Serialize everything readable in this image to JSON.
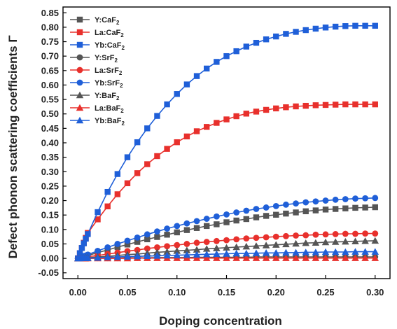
{
  "chart_data": {
    "type": "line",
    "xlabel": "Doping concentration",
    "ylabel": "Defect phonon scattering coefficients Γ",
    "xlim": [
      -0.015,
      0.315
    ],
    "ylim": [
      -0.07,
      0.87
    ],
    "xticks": [
      0.0,
      0.05,
      0.1,
      0.15,
      0.2,
      0.25,
      0.3
    ],
    "xtick_labels": [
      "0.00",
      "0.05",
      "0.10",
      "0.15",
      "0.20",
      "0.25",
      "0.30"
    ],
    "yticks": [
      -0.05,
      0.0,
      0.05,
      0.1,
      0.15,
      0.2,
      0.25,
      0.3,
      0.35,
      0.4,
      0.45,
      0.5,
      0.55,
      0.6,
      0.65,
      0.7,
      0.75,
      0.8,
      0.85
    ],
    "ytick_labels": [
      "-0.05",
      "0.00",
      "0.05",
      "0.10",
      "0.15",
      "0.20",
      "0.25",
      "0.30",
      "0.35",
      "0.40",
      "0.45",
      "0.50",
      "0.55",
      "0.60",
      "0.65",
      "0.70",
      "0.75",
      "0.80",
      "0.85"
    ],
    "legend_position": "top-left",
    "x": [
      0.0,
      0.002,
      0.004,
      0.006,
      0.008,
      0.01,
      0.02,
      0.03,
      0.04,
      0.05,
      0.06,
      0.07,
      0.08,
      0.09,
      0.1,
      0.11,
      0.12,
      0.13,
      0.14,
      0.15,
      0.16,
      0.17,
      0.18,
      0.19,
      0.2,
      0.21,
      0.22,
      0.23,
      0.24,
      0.25,
      0.26,
      0.27,
      0.28,
      0.29,
      0.3
    ],
    "series": [
      {
        "name": "Y:CaF",
        "sub": "2",
        "color": "#555555",
        "marker": "square",
        "values": [
          0.0,
          0.002,
          0.004,
          0.006,
          0.008,
          0.01,
          0.02,
          0.029,
          0.039,
          0.048,
          0.057,
          0.066,
          0.074,
          0.082,
          0.09,
          0.098,
          0.105,
          0.112,
          0.118,
          0.125,
          0.131,
          0.136,
          0.142,
          0.147,
          0.151,
          0.155,
          0.159,
          0.163,
          0.166,
          0.169,
          0.171,
          0.173,
          0.175,
          0.176,
          0.177
        ]
      },
      {
        "name": "La:CaF",
        "sub": "2",
        "color": "#e8302c",
        "marker": "square",
        "values": [
          0.0,
          0.018,
          0.036,
          0.054,
          0.071,
          0.088,
          0.135,
          0.18,
          0.222,
          0.26,
          0.295,
          0.326,
          0.354,
          0.379,
          0.402,
          0.422,
          0.44,
          0.455,
          0.469,
          0.481,
          0.492,
          0.501,
          0.508,
          0.514,
          0.519,
          0.523,
          0.526,
          0.528,
          0.53,
          0.531,
          0.532,
          0.533,
          0.533,
          0.533,
          0.533
        ]
      },
      {
        "name": "Yb:CaF",
        "sub": "2",
        "color": "#1f5fd8",
        "marker": "square",
        "values": [
          0.0,
          0.018,
          0.036,
          0.052,
          0.068,
          0.084,
          0.16,
          0.23,
          0.292,
          0.35,
          0.402,
          0.45,
          0.493,
          0.533,
          0.569,
          0.602,
          0.631,
          0.657,
          0.68,
          0.7,
          0.717,
          0.733,
          0.746,
          0.758,
          0.768,
          0.777,
          0.784,
          0.79,
          0.795,
          0.799,
          0.802,
          0.804,
          0.805,
          0.805,
          0.805
        ]
      },
      {
        "name": "Y:SrF",
        "sub": "2",
        "color": "#555555",
        "marker": "circle",
        "values": [
          0.0,
          0.0,
          0.0,
          0.0,
          0.0,
          0.0,
          0.001,
          0.001,
          0.001,
          0.002,
          0.002,
          0.002,
          0.003,
          0.003,
          0.003,
          0.003,
          0.004,
          0.004,
          0.004,
          0.004,
          0.004,
          0.004,
          0.005,
          0.005,
          0.005,
          0.005,
          0.005,
          0.005,
          0.005,
          0.005,
          0.005,
          0.005,
          0.005,
          0.005,
          0.005
        ]
      },
      {
        "name": "La:SrF",
        "sub": "2",
        "color": "#e8302c",
        "marker": "circle",
        "values": [
          0.0,
          0.001,
          0.002,
          0.003,
          0.004,
          0.006,
          0.01,
          0.015,
          0.02,
          0.025,
          0.029,
          0.034,
          0.038,
          0.042,
          0.046,
          0.05,
          0.054,
          0.057,
          0.06,
          0.063,
          0.066,
          0.069,
          0.071,
          0.073,
          0.075,
          0.077,
          0.079,
          0.08,
          0.082,
          0.083,
          0.084,
          0.085,
          0.085,
          0.086,
          0.086
        ]
      },
      {
        "name": "Yb:SrF",
        "sub": "2",
        "color": "#1f5fd8",
        "marker": "circle",
        "values": [
          0.0,
          0.003,
          0.005,
          0.008,
          0.01,
          0.013,
          0.026,
          0.038,
          0.05,
          0.061,
          0.072,
          0.083,
          0.093,
          0.103,
          0.112,
          0.121,
          0.129,
          0.137,
          0.145,
          0.152,
          0.159,
          0.165,
          0.171,
          0.176,
          0.181,
          0.186,
          0.19,
          0.194,
          0.197,
          0.2,
          0.203,
          0.205,
          0.207,
          0.208,
          0.209
        ]
      },
      {
        "name": "Y:BaF",
        "sub": "2",
        "color": "#555555",
        "marker": "triangle",
        "values": [
          0.0,
          0.0,
          0.001,
          0.001,
          0.002,
          0.002,
          0.005,
          0.007,
          0.01,
          0.013,
          0.015,
          0.018,
          0.021,
          0.023,
          0.026,
          0.028,
          0.03,
          0.033,
          0.035,
          0.037,
          0.039,
          0.041,
          0.043,
          0.045,
          0.047,
          0.049,
          0.051,
          0.053,
          0.054,
          0.056,
          0.057,
          0.058,
          0.059,
          0.06,
          0.061
        ]
      },
      {
        "name": "La:BaF",
        "sub": "2",
        "color": "#e8302c",
        "marker": "triangle",
        "values": [
          0.0,
          0.0,
          0.0,
          0.0,
          0.0,
          0.0,
          0.0,
          0.0,
          0.0,
          0.0,
          0.001,
          0.001,
          0.001,
          0.001,
          0.001,
          0.001,
          0.001,
          0.001,
          0.001,
          0.001,
          0.001,
          0.001,
          0.001,
          0.001,
          0.001,
          0.001,
          0.001,
          0.001,
          0.001,
          0.001,
          0.001,
          0.001,
          0.001,
          0.001,
          0.001
        ]
      },
      {
        "name": "Yb:BaF",
        "sub": "2",
        "color": "#1f5fd8",
        "marker": "triangle",
        "values": [
          0.0,
          0.0,
          0.001,
          0.001,
          0.001,
          0.001,
          0.002,
          0.004,
          0.005,
          0.006,
          0.007,
          0.008,
          0.009,
          0.01,
          0.011,
          0.012,
          0.013,
          0.014,
          0.015,
          0.016,
          0.017,
          0.017,
          0.018,
          0.019,
          0.019,
          0.02,
          0.02,
          0.021,
          0.021,
          0.022,
          0.022,
          0.022,
          0.023,
          0.023,
          0.023
        ]
      }
    ]
  }
}
